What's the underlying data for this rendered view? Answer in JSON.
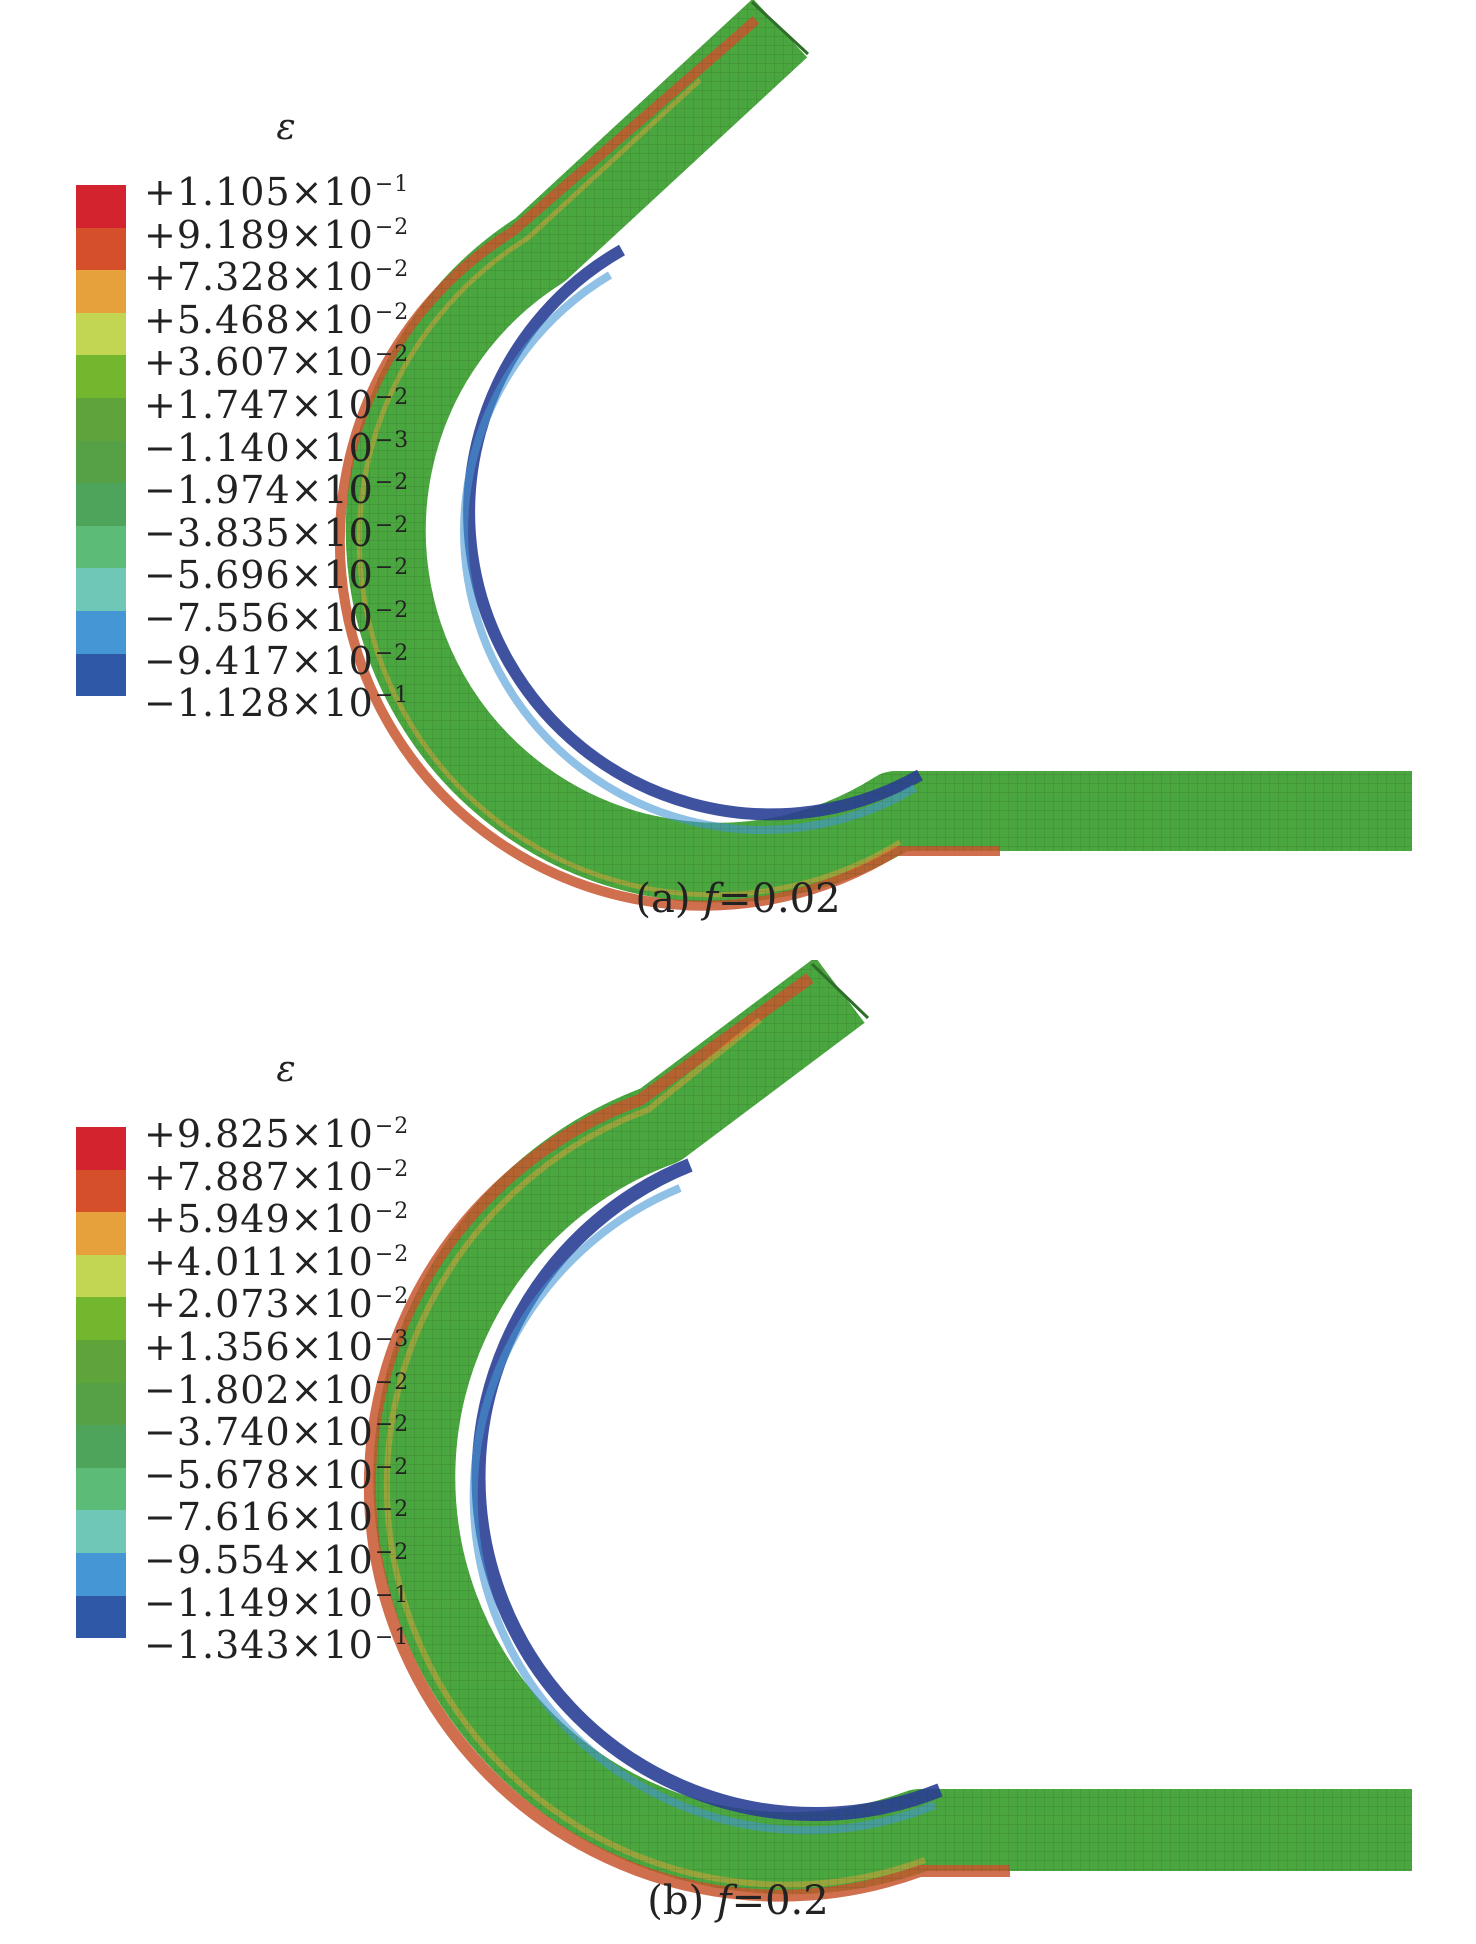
{
  "panels": [
    {
      "id": "a",
      "legend_symbol": "ε",
      "legend_labels": [
        {
          "mant": "+1.105",
          "times": "×10",
          "exp": "−1"
        },
        {
          "mant": "+9.189",
          "times": "×10",
          "exp": "−2"
        },
        {
          "mant": "+7.328",
          "times": "×10",
          "exp": "−2"
        },
        {
          "mant": "+5.468",
          "times": "×10",
          "exp": "−2"
        },
        {
          "mant": "+3.607",
          "times": "×10",
          "exp": "−2"
        },
        {
          "mant": "+1.747",
          "times": "×10",
          "exp": "−2"
        },
        {
          "mant": "−1.140",
          "times": "×10",
          "exp": "−3"
        },
        {
          "mant": "−1.974",
          "times": "×10",
          "exp": "−2"
        },
        {
          "mant": "−3.835",
          "times": "×10",
          "exp": "−2"
        },
        {
          "mant": "−5.696",
          "times": "×10",
          "exp": "−2"
        },
        {
          "mant": "−7.556",
          "times": "×10",
          "exp": "−2"
        },
        {
          "mant": "−9.417",
          "times": "×10",
          "exp": "−2"
        },
        {
          "mant": "−1.128",
          "times": "×10",
          "exp": "−1"
        }
      ],
      "caption_prefix": "(a) ",
      "caption_var": "f",
      "caption_value": "=0.02"
    },
    {
      "id": "b",
      "legend_symbol": "ε",
      "legend_labels": [
        {
          "mant": "+9.825",
          "times": "×10",
          "exp": "−2"
        },
        {
          "mant": "+7.887",
          "times": "×10",
          "exp": "−2"
        },
        {
          "mant": "+5.949",
          "times": "×10",
          "exp": "−2"
        },
        {
          "mant": "+4.011",
          "times": "×10",
          "exp": "−2"
        },
        {
          "mant": "+2.073",
          "times": "×10",
          "exp": "−2"
        },
        {
          "mant": "+1.356",
          "times": "×10",
          "exp": "−3"
        },
        {
          "mant": "−1.802",
          "times": "×10",
          "exp": "−2"
        },
        {
          "mant": "−3.740",
          "times": "×10",
          "exp": "−2"
        },
        {
          "mant": "−5.678",
          "times": "×10",
          "exp": "−2"
        },
        {
          "mant": "−7.616",
          "times": "×10",
          "exp": "−2"
        },
        {
          "mant": "−9.554",
          "times": "×10",
          "exp": "−2"
        },
        {
          "mant": "−1.149",
          "times": "×10",
          "exp": "−1"
        },
        {
          "mant": "−1.343",
          "times": "×10",
          "exp": "−1"
        }
      ],
      "caption_prefix": "(b) ",
      "caption_var": "f",
      "caption_value": "=0.2"
    }
  ],
  "colors": {
    "colormap": [
      "#d2232e",
      "#d5502a",
      "#e6a13c",
      "#c3d653",
      "#73b72f",
      "#5fa43a",
      "#56a046",
      "#4fa45b",
      "#5bbb77",
      "#6fc7b8",
      "#4596d4",
      "#2f58a6",
      "#1f3d8a"
    ],
    "tube_green": "#4aa63e",
    "tension_red": "#b8372c",
    "compression_blue": "#2a3f95"
  }
}
